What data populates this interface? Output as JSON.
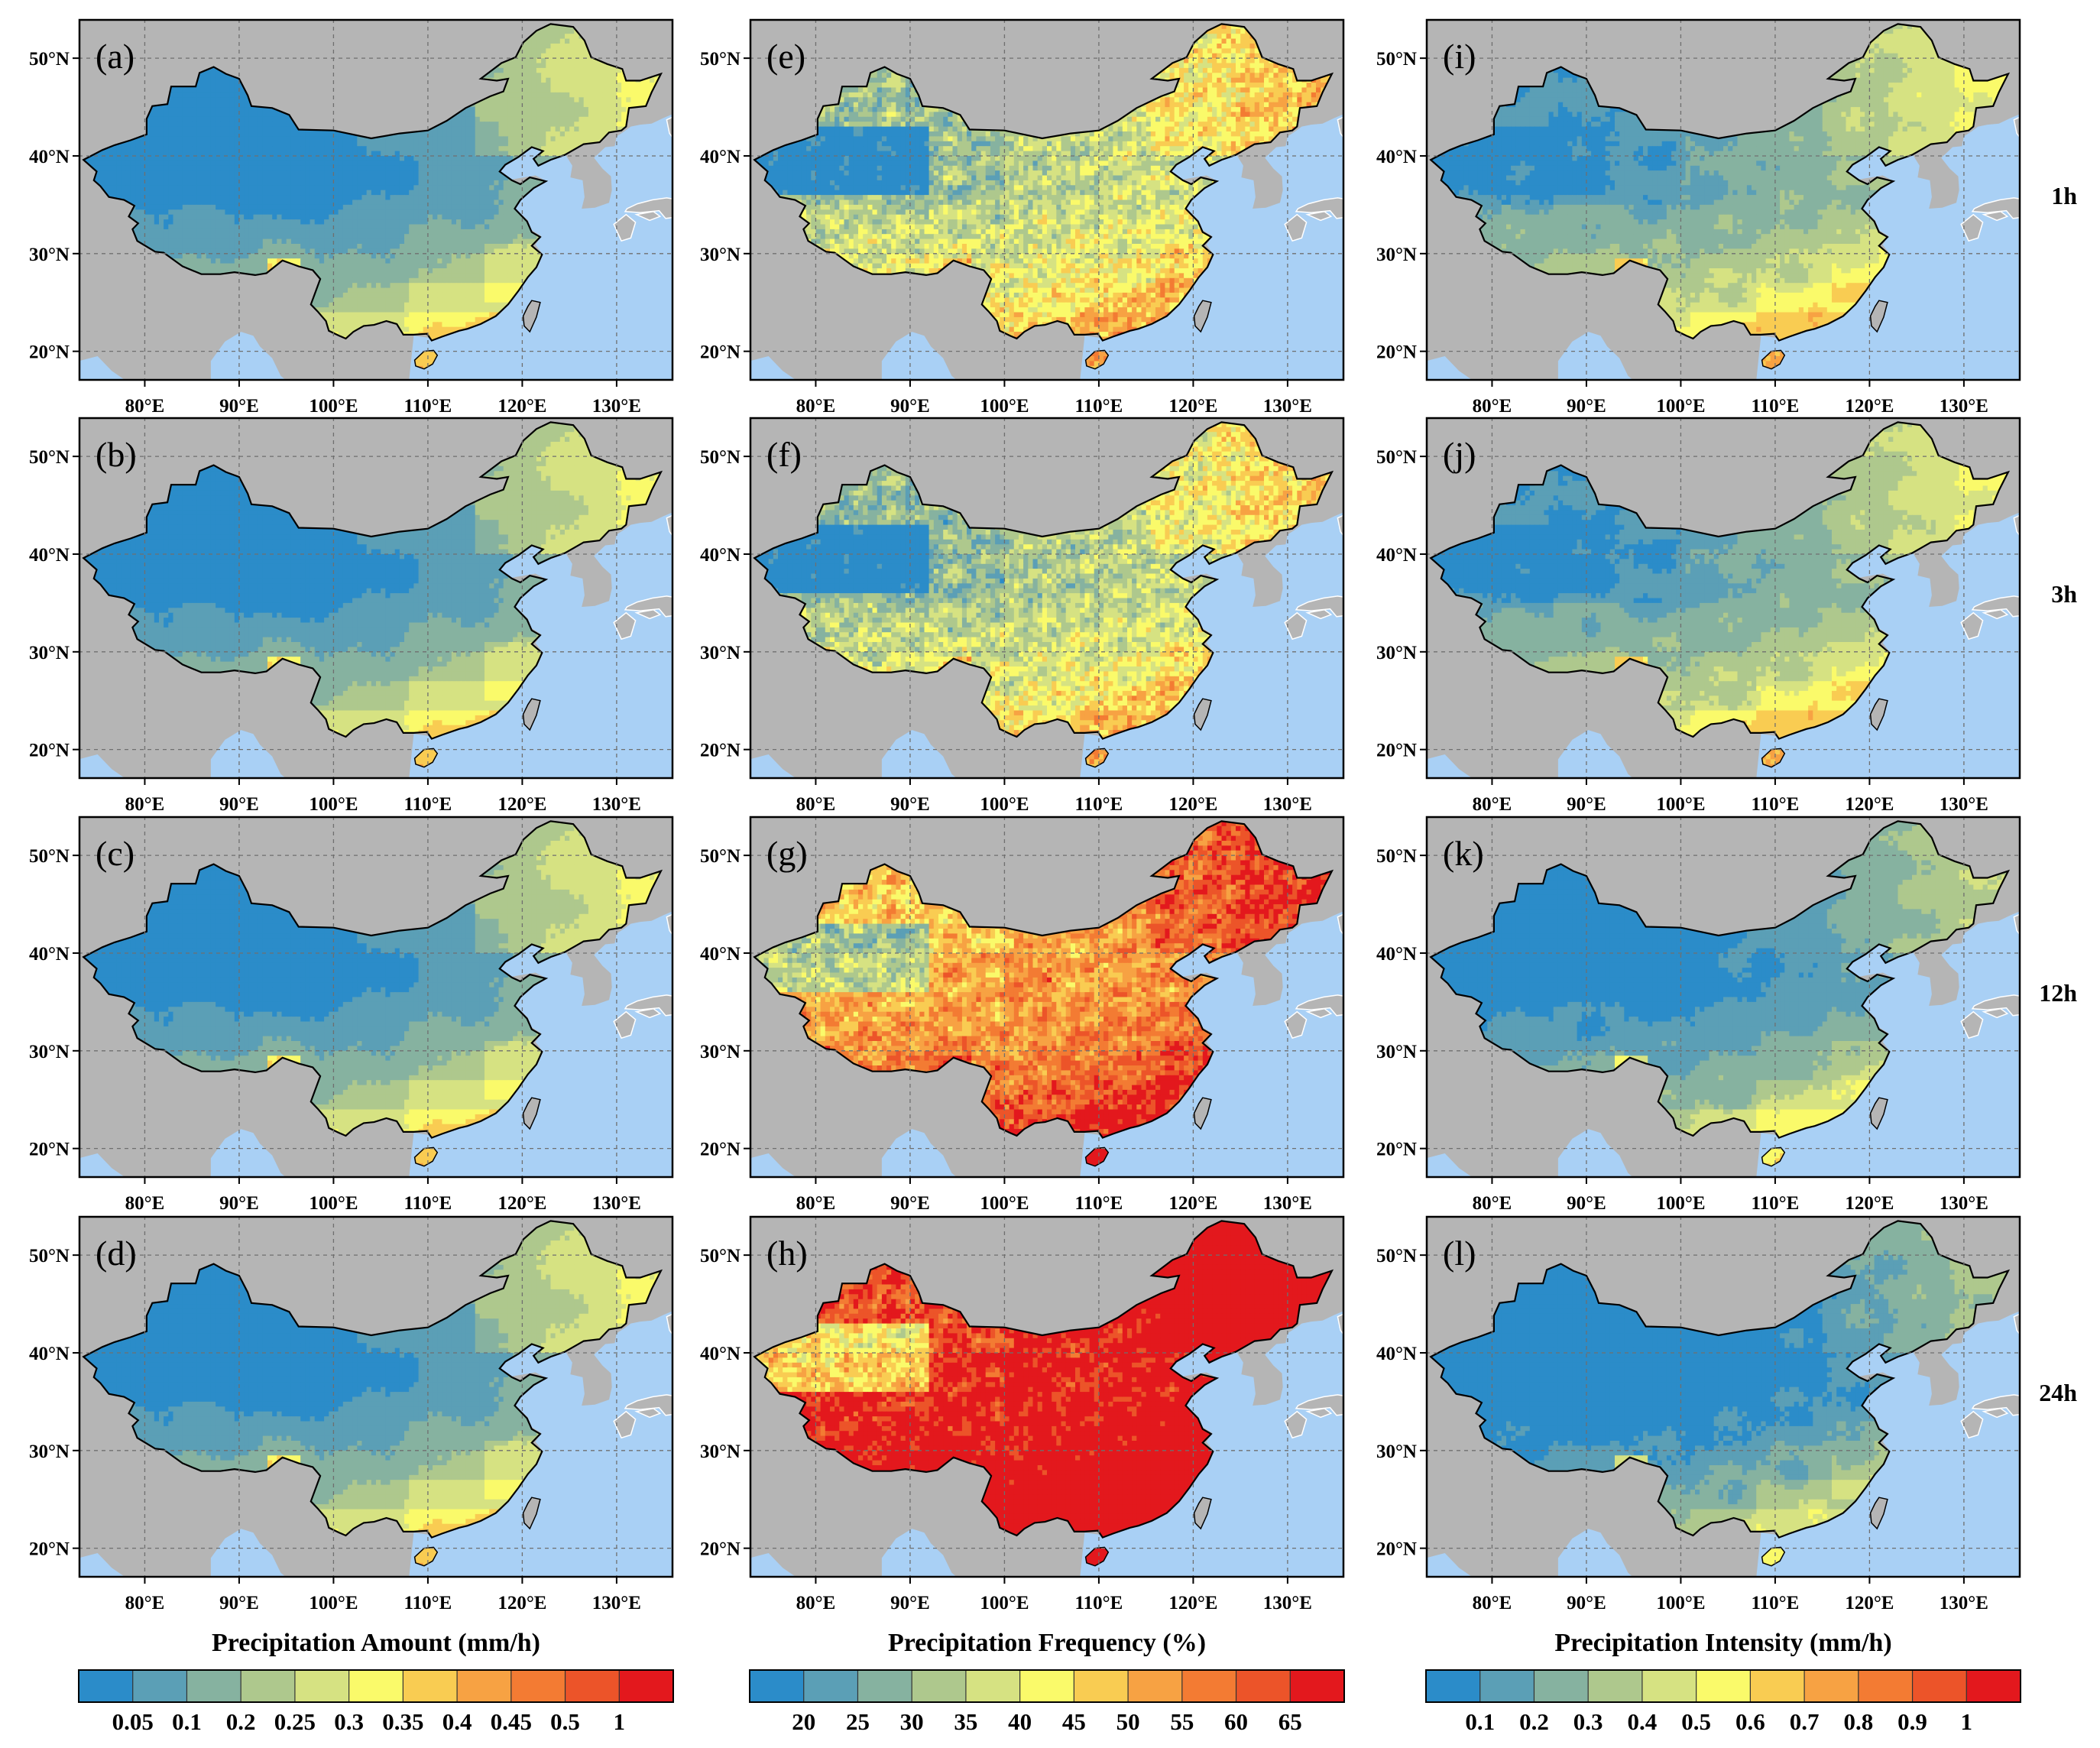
{
  "figure": {
    "row_labels": [
      "1h",
      "3h",
      "12h",
      "24h"
    ],
    "lat_ticks": [
      "20°N",
      "30°N",
      "40°N",
      "50°N"
    ],
    "lon_ticks": [
      "80°E",
      "90°E",
      "100°E",
      "110°E",
      "120°E",
      "130°E"
    ],
    "panels": [
      [
        "(a)",
        "(e)",
        "(i)"
      ],
      [
        "(b)",
        "(f)",
        "(j)"
      ],
      [
        "(c)",
        "(g)",
        "(k)"
      ],
      [
        "(d)",
        "(h)",
        "(l)"
      ]
    ]
  },
  "colorbars": [
    {
      "title": "Precipitation Amount (mm/h)",
      "ticks": [
        "0.05",
        "0.1",
        "0.2",
        "0.25",
        "0.3",
        "0.35",
        "0.4",
        "0.45",
        "0.5",
        "1"
      ],
      "colors": [
        "#2b8cc9",
        "#5b9fb6",
        "#86b2a0",
        "#aec88d",
        "#d6e282",
        "#fafa6a",
        "#f9cc52",
        "#f7a243",
        "#f37b33",
        "#ec5429",
        "#e3181d"
      ]
    },
    {
      "title": "Precipitation Frequency (%)",
      "ticks": [
        "20",
        "25",
        "30",
        "35",
        "40",
        "45",
        "50",
        "55",
        "60",
        "65"
      ],
      "colors": [
        "#2b8cc9",
        "#5b9fb6",
        "#86b2a0",
        "#aec88d",
        "#d6e282",
        "#fafa6a",
        "#f9cc52",
        "#f7a243",
        "#f37b33",
        "#ec5429",
        "#e3181d"
      ]
    },
    {
      "title": "Precipitation Intensity (mm/h)",
      "ticks": [
        "0.1",
        "0.2",
        "0.3",
        "0.4",
        "0.5",
        "0.6",
        "0.7",
        "0.8",
        "0.9",
        "1"
      ],
      "colors": [
        "#2b8cc9",
        "#5b9fb6",
        "#86b2a0",
        "#aec88d",
        "#d6e282",
        "#fafa6a",
        "#f9cc52",
        "#f7a243",
        "#f37b33",
        "#ec5429",
        "#e3181d"
      ]
    }
  ],
  "colors": {
    "land": "#b5b5b5",
    "ocean": "#a9d0f5",
    "grid": "#6f6f6f",
    "border": "#000000"
  }
}
